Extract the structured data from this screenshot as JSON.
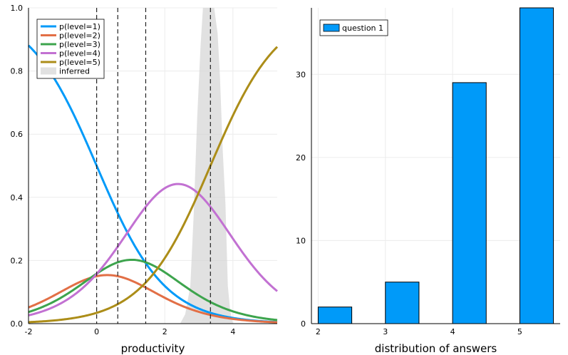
{
  "chart_data": [
    {
      "type": "line",
      "title": "",
      "xlabel": "productivity",
      "ylabel": "",
      "xlim": [
        -2,
        5.3
      ],
      "ylim": [
        0,
        1
      ],
      "xticks": [
        -2,
        0,
        2,
        4
      ],
      "yticks": [
        0.0,
        0.2,
        0.4,
        0.6,
        0.8,
        1.0
      ],
      "ytick_labels": [
        "0.0",
        "0.2",
        "0.4",
        "0.6",
        "0.8",
        "1.0"
      ],
      "grid": true,
      "legend_position": "top-left",
      "model": {
        "kind": "ordered-logit",
        "cutpoints": [
          0,
          0.62,
          1.44,
          3.34
        ]
      },
      "series": [
        {
          "name": "p(level=1)",
          "color": "#009af9"
        },
        {
          "name": "p(level=2)",
          "color": "#e26f46"
        },
        {
          "name": "p(level=3)",
          "color": "#3da44d"
        },
        {
          "name": "p(level=4)",
          "color": "#c271d2"
        },
        {
          "name": "p(level=5)",
          "color": "#ac8d18"
        }
      ],
      "vlines": [
        0,
        0.62,
        1.44,
        3.34
      ],
      "inferred": {
        "name": "inferred",
        "color": "#d4d4d4",
        "x": [
          2.45,
          2.6,
          2.75,
          2.85,
          2.95,
          3.05,
          3.12,
          3.2,
          3.3,
          3.38,
          3.45,
          3.55,
          3.62,
          3.7,
          3.78,
          3.85,
          3.92,
          4.0
        ],
        "y": [
          0.0,
          0.03,
          0.12,
          0.35,
          0.65,
          0.88,
          1.0,
          1.0,
          1.0,
          1.0,
          1.0,
          0.92,
          0.78,
          0.55,
          0.38,
          0.12,
          0.04,
          0.0
        ]
      }
    },
    {
      "type": "bar",
      "title": "",
      "xlabel": "distribution of answers",
      "ylabel": "",
      "categories": [
        "2",
        "3",
        "4",
        "5"
      ],
      "series": [
        {
          "name": "question 1",
          "color": "#009af9",
          "values": [
            2,
            5,
            29,
            38
          ]
        }
      ],
      "xlim": [
        1.9,
        5.6
      ],
      "ylim": [
        0,
        38
      ],
      "yticks": [
        0,
        10,
        20,
        30
      ],
      "grid": true,
      "legend_position": "top-left"
    }
  ]
}
